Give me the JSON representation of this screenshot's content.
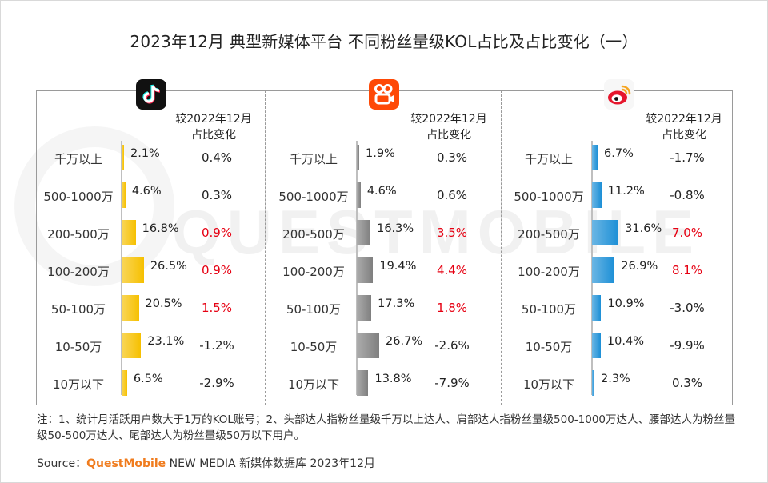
{
  "title": "2023年12月 典型新媒体平台 不同粉丝量级KOL占比及占比变化（一）",
  "watermark": "QUESTMOBILE",
  "chart_data": [
    {
      "type": "bar",
      "platform_icon": "douyin-icon",
      "color": "#f6c000",
      "header": [
        "较2022年12月",
        "占比变化"
      ],
      "categories": [
        "千万以上",
        "500-1000万",
        "200-500万",
        "100-200万",
        "50-100万",
        "10-50万",
        "10万以下"
      ],
      "values": [
        2.1,
        4.6,
        16.8,
        26.5,
        20.5,
        23.1,
        6.5
      ],
      "value_labels": [
        "2.1%",
        "4.6%",
        "16.8%",
        "26.5%",
        "20.5%",
        "23.1%",
        "6.5%"
      ],
      "changes": [
        "0.4%",
        "0.3%",
        "0.9%",
        "0.9%",
        "1.5%",
        "-1.2%",
        "-2.9%"
      ],
      "change_highlight": [
        false,
        false,
        true,
        true,
        true,
        false,
        false
      ]
    },
    {
      "type": "bar",
      "platform_icon": "kuaishou-icon",
      "color": "#7f7f7f",
      "header": [
        "较2022年12月",
        "占比变化"
      ],
      "categories": [
        "千万以上",
        "500-1000万",
        "200-500万",
        "100-200万",
        "50-100万",
        "10-50万",
        "10万以下"
      ],
      "values": [
        1.9,
        4.6,
        16.3,
        19.4,
        17.3,
        26.7,
        13.8
      ],
      "value_labels": [
        "1.9%",
        "4.6%",
        "16.3%",
        "19.4%",
        "17.3%",
        "26.7%",
        "13.8%"
      ],
      "changes": [
        "0.3%",
        "0.6%",
        "3.5%",
        "4.4%",
        "1.8%",
        "-2.6%",
        "-7.9%"
      ],
      "change_highlight": [
        false,
        false,
        true,
        true,
        true,
        false,
        false
      ]
    },
    {
      "type": "bar",
      "platform_icon": "weibo-icon",
      "color": "#1c8fd6",
      "header": [
        "较2022年12月",
        "占比变化"
      ],
      "categories": [
        "千万以上",
        "500-1000万",
        "200-500万",
        "100-200万",
        "50-100万",
        "10-50万",
        "10万以下"
      ],
      "values": [
        6.7,
        11.2,
        31.6,
        26.9,
        10.9,
        10.4,
        2.3
      ],
      "value_labels": [
        "6.7%",
        "11.2%",
        "31.6%",
        "26.9%",
        "10.9%",
        "10.4%",
        "2.3%"
      ],
      "changes": [
        "-1.7%",
        "-0.8%",
        "7.0%",
        "8.1%",
        "-3.0%",
        "-9.9%",
        "0.3%"
      ],
      "change_highlight": [
        false,
        false,
        true,
        true,
        false,
        false,
        false
      ]
    }
  ],
  "colors": {
    "highlight": "#e60012",
    "normal": "#222222"
  },
  "note": "注：1、统计月活跃用户数大于1万的KOL账号；2、头部达人指粉丝量级千万以上达人、肩部达人指粉丝量级500-1000万达人、腰部达人为粉丝量级50-500万达人、尾部达人为粉丝量级50万以下用户。",
  "source": {
    "prefix": "Source：",
    "brand": "QuestMobile",
    "suffix": " NEW MEDIA 新媒体数据库 2023年12月"
  }
}
